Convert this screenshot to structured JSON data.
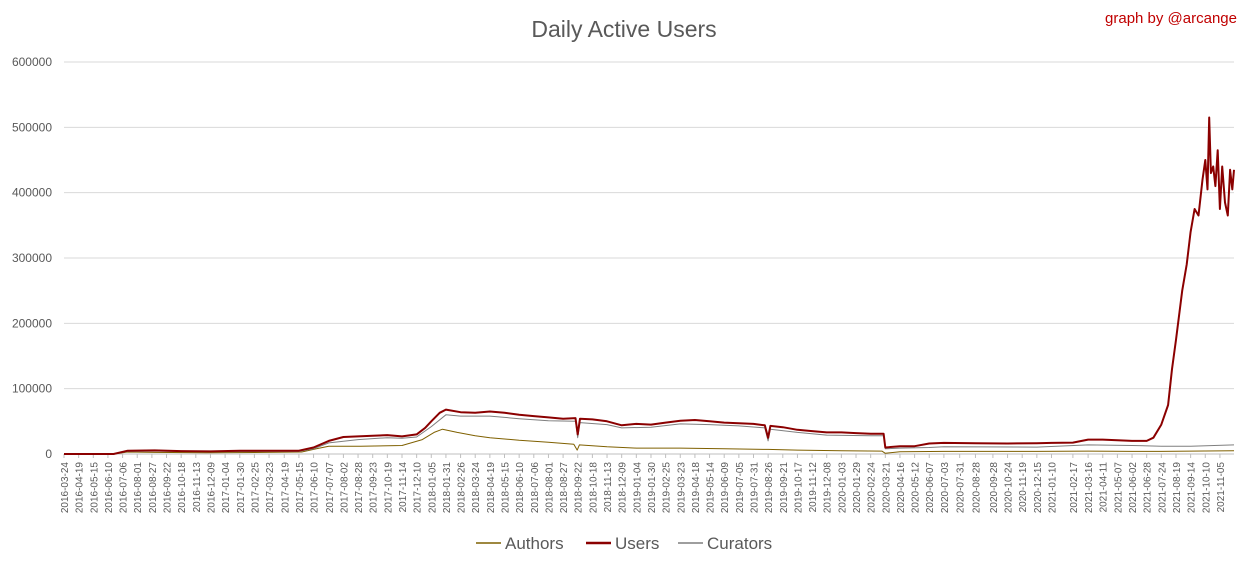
{
  "chart_data": {
    "type": "line",
    "title": "Daily Active Users",
    "credit": "graph by @arcange",
    "xlabel": "",
    "ylabel": "",
    "ylim": [
      0,
      600000
    ],
    "yticks": [
      0,
      100000,
      200000,
      300000,
      400000,
      500000,
      600000
    ],
    "grid": true,
    "legend": "bottom",
    "x_tick_labels": [
      "2016-03-24",
      "2016-04-19",
      "2016-05-15",
      "2016-06-10",
      "2016-07-06",
      "2016-08-01",
      "2016-08-27",
      "2016-09-22",
      "2016-10-18",
      "2016-11-13",
      "2016-12-09",
      "2017-01-04",
      "2017-01-30",
      "2017-02-25",
      "2017-03-23",
      "2017-04-19",
      "2017-05-15",
      "2017-06-10",
      "2017-07-07",
      "2017-08-02",
      "2017-08-28",
      "2017-09-23",
      "2017-10-19",
      "2017-11-14",
      "2017-12-10",
      "2018-01-05",
      "2018-01-31",
      "2018-02-26",
      "2018-03-24",
      "2018-04-19",
      "2018-05-15",
      "2018-06-10",
      "2018-07-06",
      "2018-08-01",
      "2018-08-27",
      "2018-09-22",
      "2018-10-18",
      "2018-11-13",
      "2018-12-09",
      "2019-01-04",
      "2019-01-30",
      "2019-02-25",
      "2019-03-23",
      "2019-04-18",
      "2019-05-14",
      "2019-06-09",
      "2019-07-05",
      "2019-07-31",
      "2019-08-26",
      "2019-09-21",
      "2019-10-17",
      "2019-11-12",
      "2019-12-08",
      "2020-01-03",
      "2020-01-29",
      "2020-02-24",
      "2020-03-21",
      "2020-04-16",
      "2020-05-12",
      "2020-06-07",
      "2020-07-03",
      "2020-07-31",
      "2020-08-28",
      "2020-09-28",
      "2020-10-24",
      "2020-11-19",
      "2020-12-15",
      "2021-01-10",
      "2021-02-17",
      "2021-03-16",
      "2021-04-11",
      "2021-05-07",
      "2021-06-02",
      "2021-06-28",
      "2021-07-24",
      "2021-08-19",
      "2021-09-14",
      "2021-10-10",
      "2021-11-05"
    ],
    "x_range": [
      "2016-03-24",
      "2021-11-30"
    ],
    "series": [
      {
        "name": "Authors",
        "color": "#7f6000",
        "points": [
          [
            "2016-03-24",
            0
          ],
          [
            "2016-06-20",
            0
          ],
          [
            "2016-07-15",
            3000
          ],
          [
            "2016-09-01",
            2500
          ],
          [
            "2016-12-01",
            2000
          ],
          [
            "2017-03-15",
            2500
          ],
          [
            "2017-05-20",
            3000
          ],
          [
            "2017-06-15",
            8000
          ],
          [
            "2017-07-07",
            12000
          ],
          [
            "2017-09-01",
            12000
          ],
          [
            "2017-11-14",
            13000
          ],
          [
            "2017-12-20",
            22000
          ],
          [
            "2018-01-10",
            33000
          ],
          [
            "2018-01-25",
            38000
          ],
          [
            "2018-02-20",
            33000
          ],
          [
            "2018-03-24",
            28000
          ],
          [
            "2018-04-19",
            25000
          ],
          [
            "2018-06-10",
            21000
          ],
          [
            "2018-08-01",
            18000
          ],
          [
            "2018-09-15",
            15000
          ],
          [
            "2018-09-21",
            6000
          ],
          [
            "2018-09-25",
            14000
          ],
          [
            "2018-11-13",
            11000
          ],
          [
            "2019-01-04",
            9000
          ],
          [
            "2019-03-23",
            9000
          ],
          [
            "2019-06-09",
            8000
          ],
          [
            "2019-08-26",
            7000
          ],
          [
            "2019-10-17",
            6000
          ],
          [
            "2020-01-03",
            5000
          ],
          [
            "2020-03-15",
            4500
          ],
          [
            "2020-03-21",
            1000
          ],
          [
            "2020-04-16",
            3500
          ],
          [
            "2020-07-03",
            4000
          ],
          [
            "2020-12-15",
            4000
          ],
          [
            "2021-03-16",
            4500
          ],
          [
            "2021-06-02",
            4000
          ],
          [
            "2021-07-24",
            4000
          ],
          [
            "2021-09-14",
            4500
          ],
          [
            "2021-11-30",
            5000
          ]
        ]
      },
      {
        "name": "Users",
        "color": "#8b0000",
        "points": [
          [
            "2016-03-24",
            0
          ],
          [
            "2016-06-20",
            0
          ],
          [
            "2016-07-15",
            5000
          ],
          [
            "2016-09-01",
            5500
          ],
          [
            "2016-10-18",
            4500
          ],
          [
            "2016-12-09",
            4000
          ],
          [
            "2017-01-30",
            5000
          ],
          [
            "2017-03-23",
            5000
          ],
          [
            "2017-05-15",
            5000
          ],
          [
            "2017-06-10",
            10000
          ],
          [
            "2017-07-07",
            20000
          ],
          [
            "2017-08-02",
            26000
          ],
          [
            "2017-09-23",
            28000
          ],
          [
            "2017-10-19",
            29000
          ],
          [
            "2017-11-14",
            27000
          ],
          [
            "2017-12-10",
            30000
          ],
          [
            "2017-12-25",
            40000
          ],
          [
            "2018-01-05",
            50000
          ],
          [
            "2018-01-20",
            63000
          ],
          [
            "2018-01-31",
            68000
          ],
          [
            "2018-02-26",
            64000
          ],
          [
            "2018-03-24",
            63000
          ],
          [
            "2018-04-19",
            65000
          ],
          [
            "2018-05-15",
            63000
          ],
          [
            "2018-06-10",
            60000
          ],
          [
            "2018-07-06",
            58000
          ],
          [
            "2018-08-01",
            56000
          ],
          [
            "2018-08-27",
            54000
          ],
          [
            "2018-09-18",
            55000
          ],
          [
            "2018-09-22",
            30000
          ],
          [
            "2018-09-26",
            54000
          ],
          [
            "2018-10-18",
            53000
          ],
          [
            "2018-11-13",
            50000
          ],
          [
            "2018-12-09",
            44000
          ],
          [
            "2019-01-04",
            46000
          ],
          [
            "2019-01-30",
            45000
          ],
          [
            "2019-02-25",
            48000
          ],
          [
            "2019-03-23",
            51000
          ],
          [
            "2019-04-18",
            52000
          ],
          [
            "2019-05-14",
            50000
          ],
          [
            "2019-06-09",
            48000
          ],
          [
            "2019-07-05",
            47000
          ],
          [
            "2019-07-31",
            46000
          ],
          [
            "2019-08-20",
            44000
          ],
          [
            "2019-08-26",
            25000
          ],
          [
            "2019-08-30",
            43000
          ],
          [
            "2019-09-21",
            41000
          ],
          [
            "2019-10-17",
            37000
          ],
          [
            "2019-11-12",
            35000
          ],
          [
            "2019-12-08",
            33000
          ],
          [
            "2020-01-03",
            33000
          ],
          [
            "2020-01-29",
            32000
          ],
          [
            "2020-02-24",
            31000
          ],
          [
            "2020-03-18",
            31000
          ],
          [
            "2020-03-21",
            10000
          ],
          [
            "2020-04-16",
            12000
          ],
          [
            "2020-05-12",
            12000
          ],
          [
            "2020-06-07",
            16000
          ],
          [
            "2020-07-03",
            17000
          ],
          [
            "2020-08-28",
            16500
          ],
          [
            "2020-10-24",
            16000
          ],
          [
            "2020-12-15",
            16500
          ],
          [
            "2021-01-10",
            17000
          ],
          [
            "2021-02-17",
            17500
          ],
          [
            "2021-03-16",
            22000
          ],
          [
            "2021-04-11",
            22000
          ],
          [
            "2021-05-07",
            21000
          ],
          [
            "2021-06-02",
            20000
          ],
          [
            "2021-06-28",
            20000
          ],
          [
            "2021-07-10",
            25000
          ],
          [
            "2021-07-24",
            45000
          ],
          [
            "2021-08-05",
            75000
          ],
          [
            "2021-08-12",
            130000
          ],
          [
            "2021-08-19",
            175000
          ],
          [
            "2021-08-30",
            250000
          ],
          [
            "2021-09-07",
            290000
          ],
          [
            "2021-09-14",
            340000
          ],
          [
            "2021-09-21",
            375000
          ],
          [
            "2021-09-28",
            365000
          ],
          [
            "2021-10-05",
            420000
          ],
          [
            "2021-10-10",
            450000
          ],
          [
            "2021-10-14",
            405000
          ],
          [
            "2021-10-17",
            515000
          ],
          [
            "2021-10-20",
            430000
          ],
          [
            "2021-10-24",
            440000
          ],
          [
            "2021-10-28",
            410000
          ],
          [
            "2021-11-01",
            465000
          ],
          [
            "2021-11-05",
            375000
          ],
          [
            "2021-11-09",
            440000
          ],
          [
            "2021-11-14",
            385000
          ],
          [
            "2021-11-19",
            365000
          ],
          [
            "2021-11-23",
            435000
          ],
          [
            "2021-11-27",
            405000
          ],
          [
            "2021-11-30",
            435000
          ]
        ]
      },
      {
        "name": "Curators",
        "color": "#7f7f7f",
        "points": [
          [
            "2016-03-24",
            0
          ],
          [
            "2016-06-20",
            0
          ],
          [
            "2016-07-15",
            4000
          ],
          [
            "2016-09-01",
            4500
          ],
          [
            "2016-12-09",
            3500
          ],
          [
            "2017-03-23",
            4000
          ],
          [
            "2017-05-15",
            4000
          ],
          [
            "2017-06-10",
            8000
          ],
          [
            "2017-07-07",
            17000
          ],
          [
            "2017-08-28",
            22000
          ],
          [
            "2017-10-19",
            25000
          ],
          [
            "2017-11-14",
            24000
          ],
          [
            "2017-12-10",
            26000
          ],
          [
            "2018-01-05",
            42000
          ],
          [
            "2018-01-31",
            60000
          ],
          [
            "2018-02-26",
            58000
          ],
          [
            "2018-04-19",
            58000
          ],
          [
            "2018-06-10",
            54000
          ],
          [
            "2018-08-01",
            51000
          ],
          [
            "2018-09-18",
            50000
          ],
          [
            "2018-09-22",
            25000
          ],
          [
            "2018-09-26",
            48000
          ],
          [
            "2018-11-13",
            45000
          ],
          [
            "2018-12-09",
            40000
          ],
          [
            "2019-01-30",
            41000
          ],
          [
            "2019-03-23",
            46000
          ],
          [
            "2019-05-14",
            45000
          ],
          [
            "2019-07-05",
            43000
          ],
          [
            "2019-08-20",
            40000
          ],
          [
            "2019-08-26",
            20000
          ],
          [
            "2019-08-30",
            38000
          ],
          [
            "2019-10-17",
            33000
          ],
          [
            "2019-12-08",
            29000
          ],
          [
            "2020-02-24",
            28000
          ],
          [
            "2020-03-18",
            28000
          ],
          [
            "2020-03-21",
            8000
          ],
          [
            "2020-04-16",
            9000
          ],
          [
            "2020-06-07",
            10000
          ],
          [
            "2020-07-03",
            11000
          ],
          [
            "2020-12-15",
            10500
          ],
          [
            "2021-03-16",
            14000
          ],
          [
            "2021-06-02",
            13000
          ],
          [
            "2021-07-24",
            12000
          ],
          [
            "2021-09-14",
            12000
          ],
          [
            "2021-11-30",
            14000
          ]
        ]
      }
    ]
  }
}
